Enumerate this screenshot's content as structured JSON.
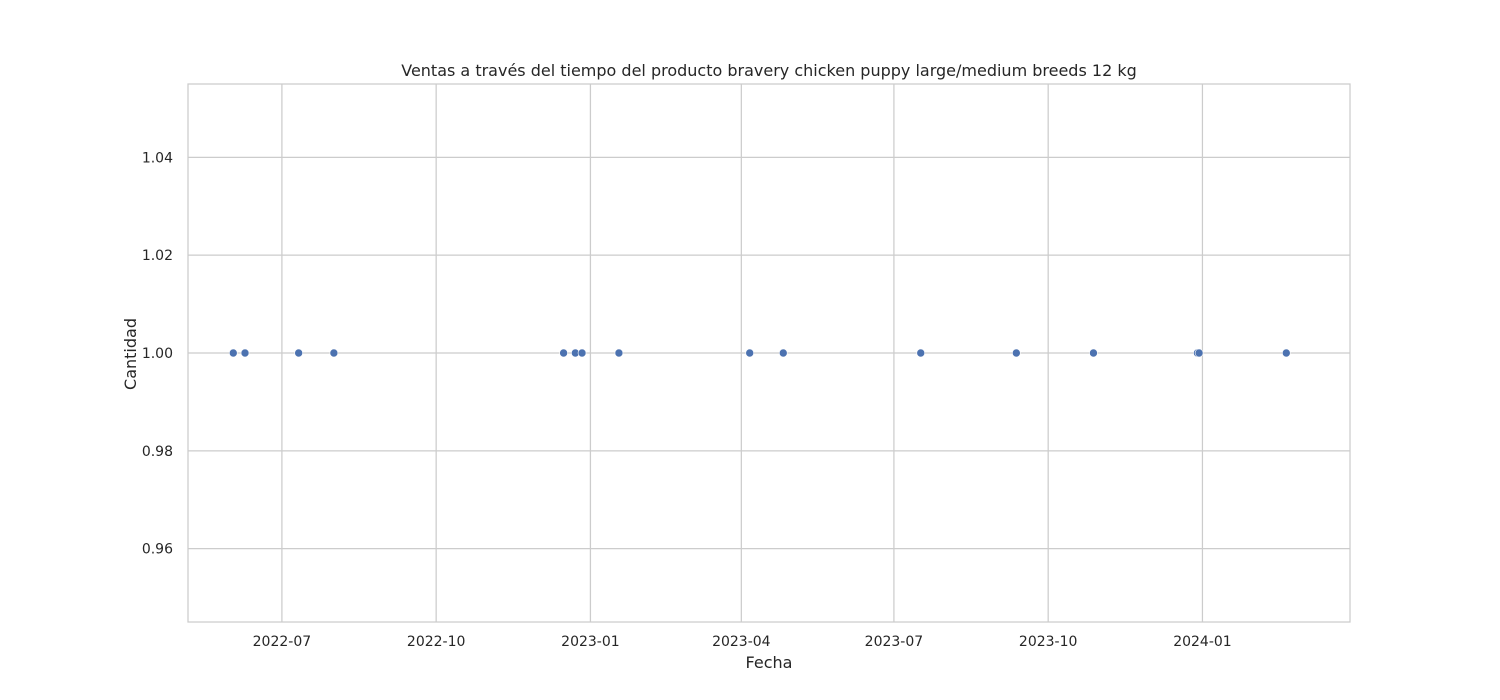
{
  "chart_data": {
    "type": "scatter",
    "title": "Ventas a través del tiempo del producto bravery chicken puppy large/medium breeds 12 kg",
    "xlabel": "Fecha",
    "ylabel": "Cantidad",
    "x_scale": "date",
    "xlim": [
      "2022-05-06",
      "2024-03-29"
    ],
    "ylim": [
      0.945,
      1.055
    ],
    "x_ticks": [
      "2022-07-01",
      "2022-10-01",
      "2023-01-01",
      "2023-04-01",
      "2023-07-01",
      "2023-10-01",
      "2024-01-01"
    ],
    "x_tick_labels": [
      "2022-07",
      "2022-10",
      "2023-01",
      "2023-04",
      "2023-07",
      "2023-10",
      "2024-01"
    ],
    "y_ticks": [
      0.96,
      0.98,
      1.0,
      1.02,
      1.04
    ],
    "y_tick_labels": [
      "0.96",
      "0.98",
      "1.00",
      "1.02",
      "1.04"
    ],
    "grid": true,
    "legend": "none",
    "marker_color": "#4c72b0",
    "series": [
      {
        "x": [
          "2022-06-02",
          "2022-06-09",
          "2022-07-11",
          "2022-08-01",
          "2022-12-16",
          "2022-12-23",
          "2022-12-27",
          "2023-01-18",
          "2023-04-06",
          "2023-04-26",
          "2023-07-17",
          "2023-09-12",
          "2023-10-28",
          "2023-12-29",
          "2023-12-30",
          "2024-02-20"
        ],
        "y": [
          1,
          1,
          1,
          1,
          1,
          1,
          1,
          1,
          1,
          1,
          1,
          1,
          1,
          1,
          1,
          1
        ]
      }
    ]
  }
}
